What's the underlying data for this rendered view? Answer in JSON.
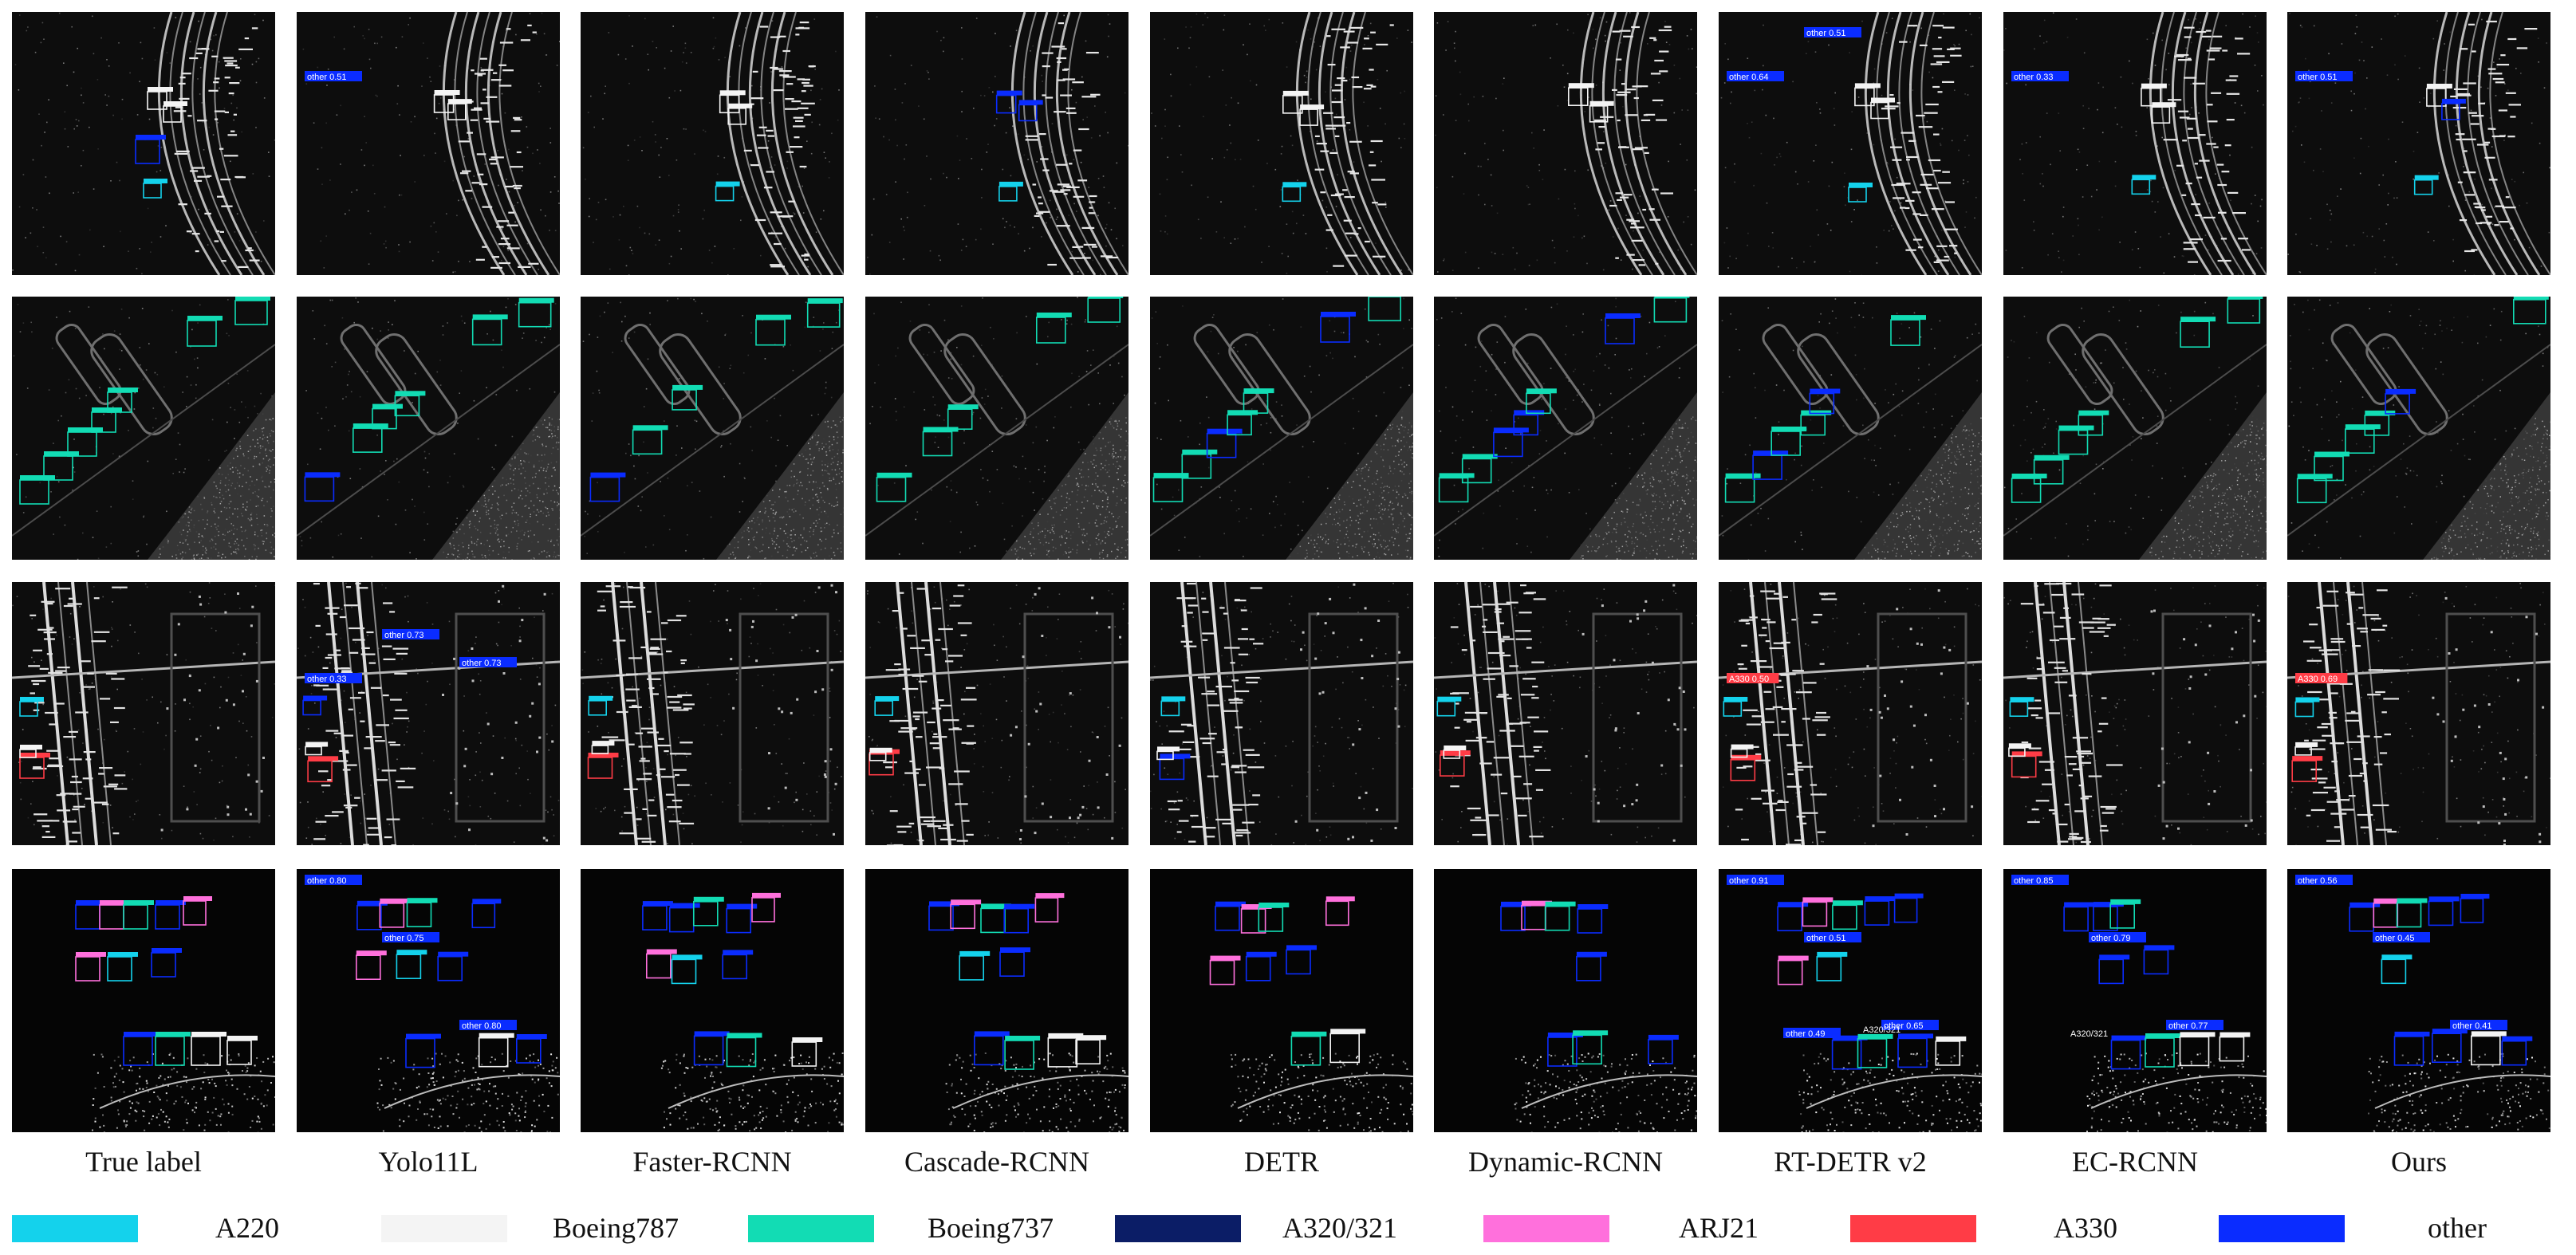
{
  "columns": [
    {
      "name": "True label"
    },
    {
      "name": "Yolo11L"
    },
    {
      "name": "Faster-RCNN"
    },
    {
      "name": "Cascade-RCNN"
    },
    {
      "name": "DETR"
    },
    {
      "name": "Dynamic-RCNN"
    },
    {
      "name": "RT-DETR v2"
    },
    {
      "name": "EC-RCNN"
    },
    {
      "name": "Ours"
    }
  ],
  "rows": 4,
  "legend": [
    {
      "label": "A220",
      "color": "#14d2ec"
    },
    {
      "label": "Boeing787",
      "color": "#f4f4f4"
    },
    {
      "label": "Boeing737",
      "color": "#12dcb4"
    },
    {
      "label": "A320/321",
      "color": "#0b1d66"
    },
    {
      "label": "ARJ21",
      "color": "#ff70dc"
    },
    {
      "label": "A330",
      "color": "#ff3c46"
    },
    {
      "label": "other",
      "color": "#0a2cff"
    }
  ],
  "detections": {
    "r0c1": [
      "other 0.51"
    ],
    "r0c6": [
      "other 0.64",
      "other 0.51"
    ],
    "r0c7": [
      "other 0.33"
    ],
    "r0c8": [
      "other 0.51"
    ],
    "r2c1": [
      "other 0.33",
      "other 0.73",
      "other 0.73"
    ],
    "r2c6": [
      "A330 0.50"
    ],
    "r2c8": [
      "A330 0.69"
    ],
    "r3c1": [
      "other 0.80",
      "other 0.75",
      "other 0.80"
    ],
    "r3c6": [
      "other 0.91",
      "other 0.51",
      "other 0.65",
      "other 0.49",
      "A320/321"
    ],
    "r3c7": [
      "other 0.85",
      "other 0.79",
      "other 0.77",
      "A320/321"
    ],
    "r3c8": [
      "other 0.56",
      "other 0.45",
      "other 0.41"
    ]
  }
}
